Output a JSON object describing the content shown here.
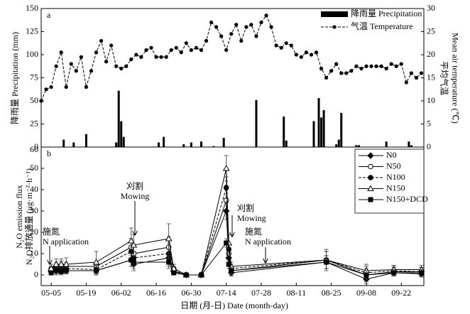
{
  "chart_data": [
    {
      "type": "combo",
      "panel_label": "a",
      "y_label": "降雨量 Precipitation (mm)",
      "y2_label": [
        "平均气温",
        "Mean air temperature (℃)"
      ],
      "xlim": [
        "05-01",
        "10-01"
      ],
      "ylim": [
        0,
        150
      ],
      "yticks": [
        0,
        25,
        50,
        75,
        100,
        125,
        150
      ],
      "y2lim": [
        0,
        30
      ],
      "y2ticks": [
        0,
        5,
        10,
        15,
        20,
        25,
        30
      ],
      "series": [
        {
          "name": "降雨量 Precipitation",
          "type": "bar",
          "color": "#000000",
          "x": [
            "05-10",
            "05-14",
            "05-19",
            "05-31",
            "06-01",
            "06-02",
            "06-03",
            "06-17",
            "06-19",
            "06-27",
            "06-30",
            "07-04",
            "07-09",
            "07-13",
            "07-26",
            "08-06",
            "08-07",
            "08-18",
            "08-20",
            "08-21",
            "08-22",
            "08-27",
            "08-28",
            "08-29",
            "09-04",
            "09-05",
            "09-16",
            "09-25",
            "09-26"
          ],
          "values": [
            8,
            5,
            14,
            5,
            61,
            28,
            11,
            5,
            11,
            3,
            5,
            6,
            1,
            10,
            51,
            33,
            7,
            28,
            53,
            32,
            40,
            3,
            8,
            37,
            2,
            2,
            6,
            6,
            2
          ]
        },
        {
          "name": "气温 Temperature",
          "type": "line",
          "axis": "y2",
          "color": "#000000",
          "x": [
            "05-01",
            "05-03",
            "05-05",
            "05-07",
            "05-09",
            "05-11",
            "05-13",
            "05-15",
            "05-17",
            "05-19",
            "05-21",
            "05-23",
            "05-25",
            "05-27",
            "05-29",
            "05-31",
            "06-02",
            "06-04",
            "06-06",
            "06-08",
            "06-10",
            "06-12",
            "06-14",
            "06-16",
            "06-18",
            "06-20",
            "06-22",
            "06-24",
            "06-26",
            "06-28",
            "06-30",
            "07-02",
            "07-04",
            "07-06",
            "07-08",
            "07-10",
            "07-12",
            "07-14",
            "07-16",
            "07-18",
            "07-20",
            "07-22",
            "07-24",
            "07-26",
            "07-28",
            "07-30",
            "08-01",
            "08-03",
            "08-05",
            "08-07",
            "08-09",
            "08-11",
            "08-13",
            "08-15",
            "08-17",
            "08-19",
            "08-21",
            "08-23",
            "08-25",
            "08-27",
            "08-29",
            "08-31",
            "09-02",
            "09-04",
            "09-06",
            "09-08",
            "09-10",
            "09-12",
            "09-14",
            "09-16",
            "09-18",
            "09-20",
            "09-22",
            "09-24",
            "09-26",
            "09-28",
            "09-30"
          ],
          "values": [
            10,
            12.5,
            13,
            17.5,
            20.5,
            13,
            18,
            16.5,
            19.5,
            13,
            16.5,
            20.5,
            23,
            18.5,
            22,
            17.5,
            17,
            17.5,
            19,
            20,
            19.5,
            21,
            21.5,
            19.5,
            19.5,
            19.5,
            21,
            21.5,
            20.5,
            22.5,
            21,
            21.5,
            21,
            23,
            27,
            26,
            24,
            21,
            24.5,
            26.5,
            23,
            26,
            26.5,
            24,
            27,
            28.5,
            26,
            22,
            21.5,
            22.5,
            22,
            20,
            19.5,
            20.5,
            20,
            20.5,
            17,
            15,
            16.5,
            18,
            16,
            16,
            16.5,
            17.5,
            17,
            17.5,
            17.5,
            17.5,
            17.5,
            17,
            18,
            17.5,
            18,
            14,
            16,
            15,
            16
          ]
        }
      ]
    },
    {
      "type": "line",
      "panel_label": "b",
      "y_label": [
        "N₂O排放通量 (μg·m⁻²·h⁻¹)",
        "N₂O emission flux"
      ],
      "x_label": "日期 (月-日) Date (month-day)",
      "xlim": [
        "05-01",
        "10-01"
      ],
      "xticks": [
        "05-05",
        "05-19",
        "06-02",
        "06-16",
        "06-30",
        "07-14",
        "07-28",
        "08-11",
        "08-25",
        "09-08",
        "09-22"
      ],
      "ylim": [
        -5,
        60
      ],
      "yticks": [
        0,
        10,
        20,
        30,
        40,
        50,
        60
      ],
      "x": [
        "05-05",
        "05-07",
        "05-09",
        "05-11",
        "05-23",
        "06-06",
        "06-07",
        "06-21",
        "06-23",
        "06-28",
        "07-04",
        "07-14",
        "07-15",
        "07-16",
        "08-23",
        "09-08",
        "09-19",
        "09-30"
      ],
      "series": [
        {
          "name": "N0",
          "marker": "diamond",
          "line_style": "solid",
          "color": "#000000",
          "values": [
            1.5,
            2,
            2.5,
            2,
            2,
            7,
            5,
            8,
            1.5,
            0,
            0,
            30,
            8,
            1,
            6,
            -2,
            1,
            0.5
          ],
          "errors": [
            1.5,
            2,
            2,
            1.5,
            2,
            3,
            3,
            4,
            1.5,
            0.5,
            0.5,
            4,
            2,
            1.5,
            3,
            2,
            1.5,
            1.5
          ]
        },
        {
          "name": "N50",
          "marker": "circle-open",
          "line_style": "solid",
          "color": "#000000",
          "values": [
            3,
            4,
            4.5,
            4,
            4,
            13,
            10,
            13,
            3,
            0,
            0,
            35,
            10,
            2,
            7,
            0,
            1.5,
            1.5
          ],
          "errors": [
            2,
            2,
            2,
            2,
            2,
            4,
            4,
            5,
            2,
            0.5,
            0.5,
            5,
            3,
            2,
            4,
            3,
            2,
            2
          ]
        },
        {
          "name": "N100",
          "marker": "circle",
          "line_style": "dashed",
          "color": "#000000",
          "values": [
            2,
            3,
            3,
            3,
            2.5,
            11,
            8,
            10,
            2,
            0,
            0,
            41,
            12,
            3,
            7,
            1,
            2,
            1.5
          ],
          "errors": [
            2,
            2,
            2,
            2,
            2,
            4,
            3,
            5,
            2,
            0.5,
            0.5,
            5,
            3,
            2,
            4,
            3,
            2,
            2
          ]
        },
        {
          "name": "N150",
          "marker": "triangle-open",
          "line_style": "solid",
          "color": "#000000",
          "values": [
            3,
            5,
            5,
            5,
            6,
            16,
            14,
            17,
            3,
            0,
            0,
            50,
            15,
            4,
            7,
            2,
            2.5,
            2.5
          ],
          "errors": [
            2,
            2.5,
            2.5,
            3,
            5,
            6,
            5,
            7,
            2,
            0.5,
            0.5,
            6,
            4,
            2,
            5,
            3,
            2,
            2
          ]
        },
        {
          "name": "N150+DCD",
          "marker": "square",
          "line_style": "solid",
          "color": "#000000",
          "values": [
            1,
            2,
            1.5,
            2,
            2,
            7,
            6,
            6,
            1,
            0,
            0,
            15,
            5,
            2,
            6,
            0,
            1,
            1
          ],
          "errors": [
            1,
            1.5,
            1.5,
            1.5,
            2,
            3,
            3,
            3,
            1,
            0.5,
            0.5,
            2,
            2,
            1.5,
            3,
            2,
            1.5,
            1.5
          ]
        }
      ],
      "annotations": [
        {
          "lines": [
            "施氮",
            "N application"
          ]
        },
        {
          "lines": [
            "刈割",
            "Mowing"
          ]
        },
        {
          "lines": [
            "刈割",
            "Mowing"
          ]
        },
        {
          "lines": [
            "施氮",
            "N application"
          ]
        }
      ]
    }
  ]
}
